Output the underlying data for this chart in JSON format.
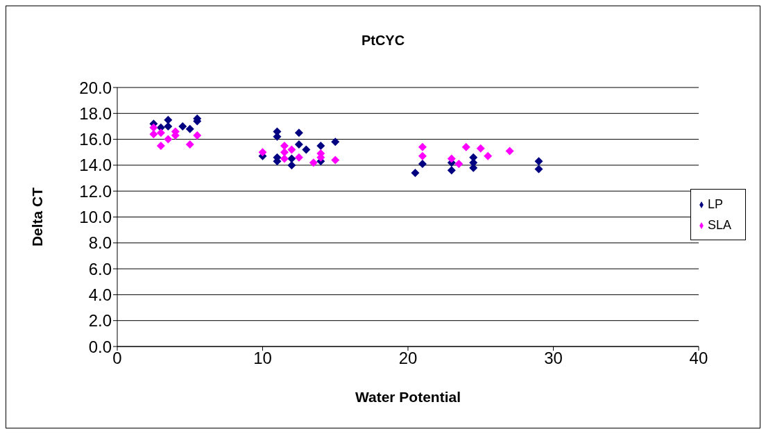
{
  "chart_data": {
    "type": "scatter",
    "title": "PtCYC",
    "xlabel": "Water Potential",
    "ylabel": "Delta CT",
    "xlim": [
      0,
      40
    ],
    "xticks": [
      0,
      10,
      20,
      30,
      40
    ],
    "ylim": [
      0,
      20
    ],
    "yticks": [
      {
        "value": 0,
        "label": "0.0"
      },
      {
        "value": 2,
        "label": "2.0"
      },
      {
        "value": 4,
        "label": "4.0"
      },
      {
        "value": 6,
        "label": "6.0"
      },
      {
        "value": 8,
        "label": "8.0"
      },
      {
        "value": 10,
        "label": "10.0"
      },
      {
        "value": 12,
        "label": "12.0"
      },
      {
        "value": 14,
        "label": "14.0"
      },
      {
        "value": 16,
        "label": "16.0"
      },
      {
        "value": 18,
        "label": "18.0"
      },
      {
        "value": 20,
        "label": "20.0"
      }
    ],
    "grid": "y",
    "legend": "right",
    "marker": "diamond",
    "series": [
      {
        "name": "LP",
        "color": "#000080",
        "x": [
          2.5,
          3,
          3.5,
          3.5,
          4.5,
          5,
          5.5,
          5.5,
          10,
          11,
          11,
          11,
          11,
          12.5,
          12.5,
          13,
          14,
          15,
          12,
          12,
          14,
          20.5,
          21,
          23,
          23,
          24.5,
          24.5,
          24.5,
          29,
          29
        ],
        "values": [
          17.2,
          16.9,
          17.5,
          17,
          17,
          16.8,
          17.6,
          17.4,
          14.7,
          16.6,
          16.2,
          14.6,
          14.3,
          16.5,
          15.6,
          15.2,
          15.5,
          15.8,
          14.5,
          14,
          14.3,
          13.4,
          14.1,
          14.2,
          13.6,
          14.6,
          14.2,
          13.8,
          14.3,
          13.7
        ]
      },
      {
        "name": "SLA",
        "color": "#ff00ff",
        "x": [
          2.5,
          2.5,
          3,
          3,
          3.5,
          4,
          4,
          5,
          5.5,
          10,
          11.5,
          11.5,
          12,
          11.5,
          12.5,
          13.5,
          14,
          14,
          15,
          21,
          21,
          23,
          23.5,
          24,
          25,
          25.5,
          27
        ],
        "values": [
          16.9,
          16.4,
          16.5,
          15.5,
          16,
          16.6,
          16.3,
          15.6,
          16.3,
          15,
          15.5,
          15,
          15.2,
          14.5,
          14.6,
          14.2,
          14.9,
          14.6,
          14.4,
          15.4,
          14.7,
          14.5,
          14.1,
          15.4,
          15.3,
          14.7,
          15.1
        ]
      }
    ]
  }
}
